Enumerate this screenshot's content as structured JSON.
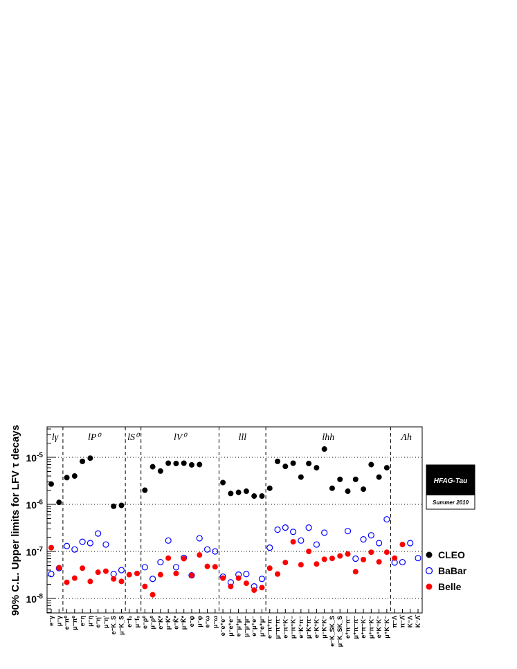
{
  "chart_data": {
    "type": "scatter",
    "ylabel": "90% C.L. Upper limits for LFV τ decays",
    "yscale": "log",
    "ylim": [
      4e-09,
      3e-05
    ],
    "yticks": [
      {
        "value": 1e-08,
        "base": "10",
        "exp": "-8"
      },
      {
        "value": 1e-07,
        "base": "10",
        "exp": "-7"
      },
      {
        "value": 1e-06,
        "base": "10",
        "exp": "-6"
      },
      {
        "value": 1e-05,
        "base": "10",
        "exp": "-5"
      }
    ],
    "grid": "horizontal dotted",
    "legend_position": "right",
    "groups": [
      {
        "label": "lγ",
        "start": 0,
        "end": 2
      },
      {
        "label": "lP⁰",
        "start": 2,
        "end": 10
      },
      {
        "label": "lS⁰",
        "start": 10,
        "end": 12
      },
      {
        "label": "lV⁰",
        "start": 12,
        "end": 22
      },
      {
        "label": "lll",
        "start": 22,
        "end": 28
      },
      {
        "label": "lhh",
        "start": 28,
        "end": 44
      },
      {
        "label": "Λh",
        "start": 44,
        "end": 48
      }
    ],
    "categories": [
      "e⁻γ",
      "μ⁻γ",
      "e⁻π⁰",
      "μ⁻π⁰",
      "e⁻η",
      "μ⁻η",
      "e⁻η'",
      "μ⁻η'",
      "e⁻K_S",
      "μ⁻K_S",
      "e⁻f₀",
      "μ⁻f₀",
      "e⁻ρ⁰",
      "μ⁻ρ⁰",
      "e⁻K*",
      "μ⁻K*",
      "e⁻K̄*",
      "μ⁻K̄*",
      "e⁻φ",
      "μ⁻φ",
      "e⁻ω",
      "μ⁻ω",
      "e⁻e⁺e⁻",
      "μ⁻e⁺e⁻",
      "e⁻μ⁺μ⁻",
      "μ⁻μ⁺μ⁻",
      "e⁻μ⁺e⁻",
      "μ⁻e⁺μ⁻",
      "e⁻π⁺π⁻",
      "μ⁻π⁺π⁻",
      "e⁻π⁺K⁻",
      "μ⁻π⁺K⁻",
      "e⁻K⁺π⁻",
      "μ⁻K⁺π⁻",
      "e⁻K⁺K⁻",
      "μ⁻K⁺K⁻",
      "e⁻K_SK_S",
      "μ⁻K_SK_S",
      "e⁺π⁻π⁻",
      "μ⁺π⁻π⁻",
      "e⁺π⁻K⁻",
      "μ⁺π⁻K⁻",
      "e⁺K⁻K⁻",
      "μ⁺K⁻K⁻",
      "π⁻Λ",
      "π⁻Λ̄",
      "K⁻Λ",
      "K⁻Λ̄"
    ],
    "series": [
      {
        "name": "CLEO",
        "marker": "filled-circle",
        "color": "#000000",
        "values": [
          2.7e-06,
          1.1e-06,
          3.7e-06,
          4e-06,
          8.2e-06,
          9.6e-06,
          null,
          null,
          9.1e-07,
          9.5e-07,
          null,
          null,
          2e-06,
          6.3e-06,
          5.1e-06,
          7.5e-06,
          7.4e-06,
          7.5e-06,
          6.9e-06,
          7e-06,
          null,
          null,
          2.9e-06,
          1.7e-06,
          1.8e-06,
          1.9e-06,
          1.5e-06,
          1.5e-06,
          2.2e-06,
          8.2e-06,
          6.4e-06,
          7.5e-06,
          3.8e-06,
          7.4e-06,
          6e-06,
          1.5e-05,
          2.2e-06,
          3.4e-06,
          1.9e-06,
          3.4e-06,
          2.1e-06,
          7e-06,
          3.8e-06,
          6e-06,
          null,
          null,
          null,
          null
        ]
      },
      {
        "name": "BaBar",
        "marker": "open-circle",
        "color": "#0000ff",
        "values": [
          3.3e-08,
          4.4e-08,
          1.3e-07,
          1.1e-07,
          1.6e-07,
          1.5e-07,
          2.4e-07,
          1.4e-07,
          3.3e-08,
          4e-08,
          null,
          null,
          4.6e-08,
          2.6e-08,
          5.9e-08,
          1.7e-07,
          4.6e-08,
          7.3e-08,
          3.1e-08,
          1.9e-07,
          1.1e-07,
          1e-07,
          2.9e-08,
          2.2e-08,
          3.2e-08,
          3.3e-08,
          1.8e-08,
          2.6e-08,
          1.2e-07,
          2.9e-07,
          3.2e-07,
          2.6e-07,
          1.7e-07,
          3.2e-07,
          1.4e-07,
          2.5e-07,
          null,
          null,
          2.7e-07,
          7e-08,
          1.8e-07,
          2.2e-07,
          1.5e-07,
          4.8e-07,
          5.8e-08,
          5.9e-08,
          1.5e-07,
          7.2e-08
        ]
      },
      {
        "name": "Belle",
        "marker": "filled-circle",
        "color": "#ff0000",
        "values": [
          1.2e-07,
          4.5e-08,
          2.2e-08,
          2.7e-08,
          4.4e-08,
          2.3e-08,
          3.6e-08,
          3.8e-08,
          2.6e-08,
          2.3e-08,
          3.2e-08,
          3.4e-08,
          1.8e-08,
          1.2e-08,
          3.2e-08,
          7.2e-08,
          3.4e-08,
          7e-08,
          3.1e-08,
          8.4e-08,
          4.8e-08,
          4.7e-08,
          2.7e-08,
          1.8e-08,
          2.7e-08,
          2.1e-08,
          1.5e-08,
          1.7e-08,
          4.4e-08,
          3.3e-08,
          5.8e-08,
          1.6e-07,
          5.2e-08,
          1e-07,
          5.4e-08,
          6.8e-08,
          7.1e-08,
          8e-08,
          8.8e-08,
          3.7e-08,
          6.7e-08,
          9.6e-08,
          6e-08,
          9.6e-08,
          7.2e-08,
          1.4e-07,
          null,
          null
        ]
      }
    ]
  },
  "badge": {
    "title": "HFAG-Tau",
    "subtitle": "Summer 2010"
  },
  "colors": {
    "badge_bg": "#000000",
    "grid": "#000000"
  }
}
